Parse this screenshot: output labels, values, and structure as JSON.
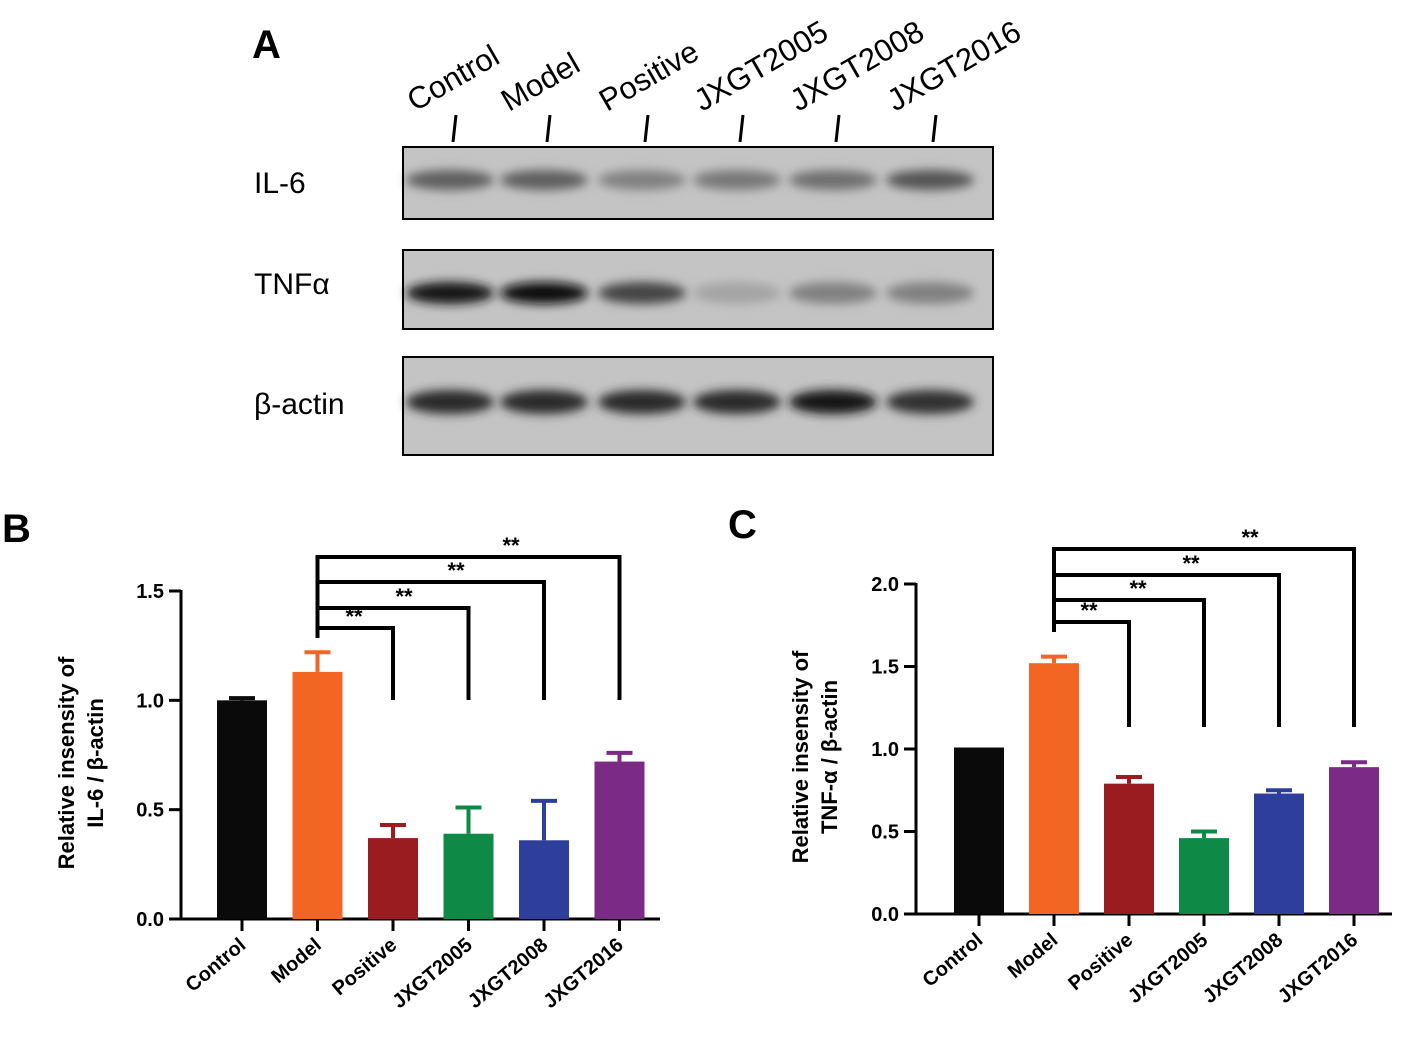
{
  "panel_a": {
    "letter": "A",
    "lanes": [
      "Control",
      "Model",
      "Positive",
      "JXGT2005",
      "JXGT2008",
      "JXGT2016"
    ],
    "blots": [
      {
        "label": "IL-6",
        "intensity": [
          0.55,
          0.55,
          0.35,
          0.4,
          0.45,
          0.6
        ]
      },
      {
        "label": "TNFα",
        "intensity": [
          0.95,
          1.0,
          0.7,
          0.15,
          0.35,
          0.35
        ]
      },
      {
        "label": "β-actin",
        "intensity": [
          0.85,
          0.85,
          0.85,
          0.85,
          0.95,
          0.8
        ]
      }
    ]
  },
  "chart_data": [
    {
      "type": "bar",
      "panel": "B",
      "categories": [
        "Control",
        "Model",
        "Positive",
        "JXGT2005",
        "JXGT2008",
        "JXGT2016"
      ],
      "values": [
        1.0,
        1.13,
        0.37,
        0.39,
        0.36,
        0.72
      ],
      "errors": [
        0.01,
        0.09,
        0.06,
        0.12,
        0.18,
        0.04
      ],
      "colors": [
        "#0a0a0a",
        "#f26522",
        "#9b1c20",
        "#0e8a46",
        "#2e3e9b",
        "#7b2a85"
      ],
      "ylabel_line1": "Relative insensity of",
      "ylabel_line2": "IL-6 / β-actin",
      "ylim": [
        0,
        1.5
      ],
      "yticks": [
        "0.0",
        "0.5",
        "1.0",
        "1.5"
      ],
      "significance": [
        {
          "from": "Model",
          "to": "Positive",
          "label": "**"
        },
        {
          "from": "Model",
          "to": "JXGT2005",
          "label": "**"
        },
        {
          "from": "Model",
          "to": "JXGT2008",
          "label": "**"
        },
        {
          "from": "Model",
          "to": "JXGT2016",
          "label": "**"
        }
      ]
    },
    {
      "type": "bar",
      "panel": "C",
      "categories": [
        "Control",
        "Model",
        "Positive",
        "JXGT2005",
        "JXGT2008",
        "JXGT2016"
      ],
      "values": [
        1.0,
        1.52,
        0.79,
        0.46,
        0.73,
        0.89
      ],
      "errors": [
        0.0,
        0.04,
        0.04,
        0.04,
        0.02,
        0.03
      ],
      "colors": [
        "#0a0a0a",
        "#f26522",
        "#9b1c20",
        "#0e8a46",
        "#2e3e9b",
        "#7b2a85"
      ],
      "ylabel_line1": "Relative insensity of",
      "ylabel_line2": "TNF-α / β-actin",
      "ylim": [
        0,
        2.0
      ],
      "yticks": [
        "0.0",
        "0.5",
        "1.0",
        "1.5",
        "2.0"
      ],
      "significance": [
        {
          "from": "Model",
          "to": "Positive",
          "label": "**"
        },
        {
          "from": "Model",
          "to": "JXGT2005",
          "label": "**"
        },
        {
          "from": "Model",
          "to": "JXGT2008",
          "label": "**"
        },
        {
          "from": "Model",
          "to": "JXGT2016",
          "label": "**"
        }
      ]
    }
  ]
}
